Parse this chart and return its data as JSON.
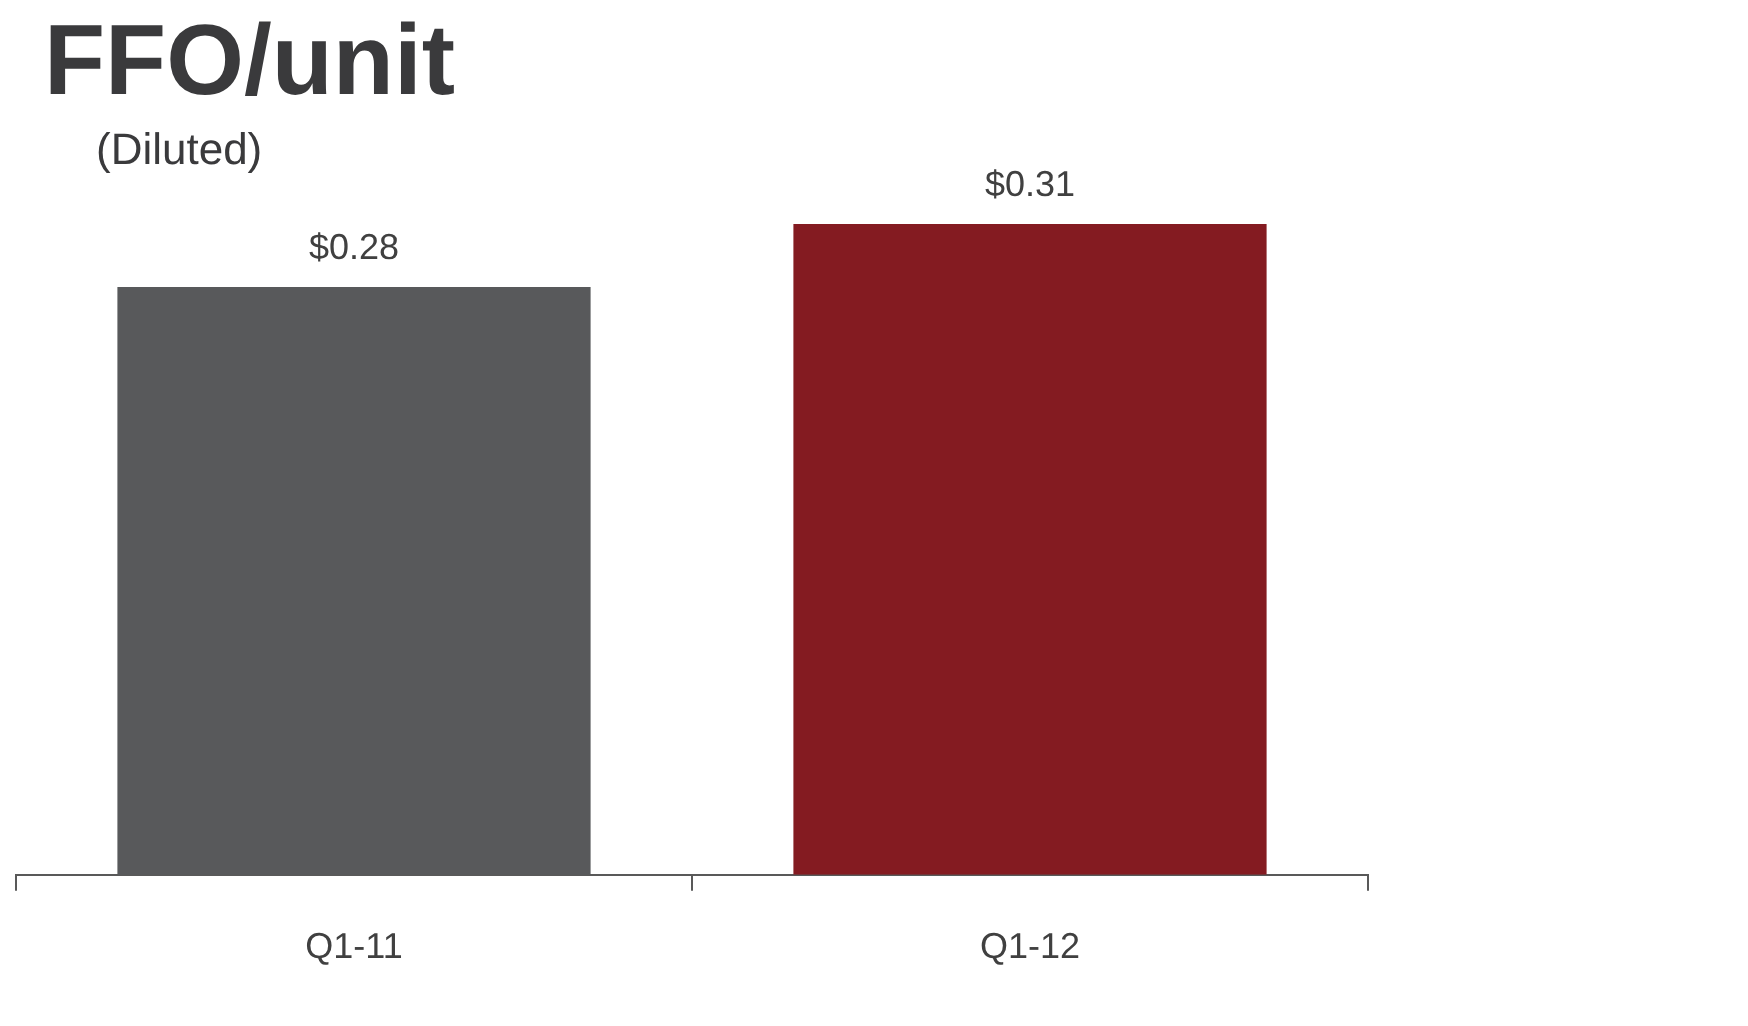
{
  "chart_data": {
    "type": "bar",
    "title": "FFO/unit",
    "subtitle": "(Diluted)",
    "categories": [
      "Q1-11",
      "Q1-12"
    ],
    "values": [
      0.28,
      0.31
    ],
    "colors": [
      "#58595b",
      "#841b21"
    ],
    "value_labels": [
      "$0.28",
      "$0.31"
    ],
    "grid": false,
    "legend": false,
    "tick_labels": "x"
  }
}
